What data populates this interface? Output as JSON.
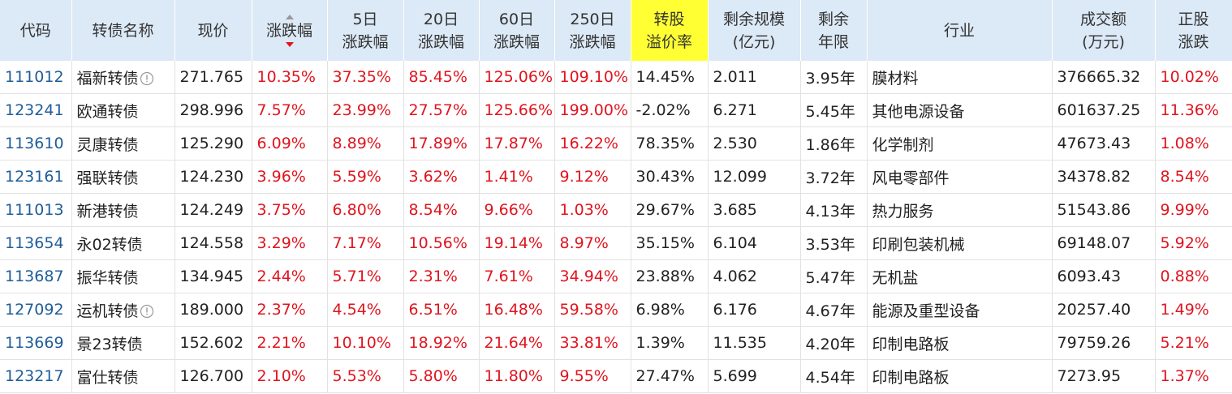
{
  "table": {
    "headers": [
      [
        "代码"
      ],
      [
        "转债名称"
      ],
      [
        "现价"
      ],
      [
        "涨跌幅"
      ],
      [
        "5日",
        "涨跌幅"
      ],
      [
        "20日",
        "涨跌幅"
      ],
      [
        "60日",
        "涨跌幅"
      ],
      [
        "250日",
        "涨跌幅"
      ],
      [
        "转股",
        "溢价率"
      ],
      [
        "剩余规模",
        "(亿元)"
      ],
      [
        "剩余",
        "年限"
      ],
      [
        "行业"
      ],
      [
        "成交额",
        "(万元)"
      ],
      [
        "正股",
        "涨跌"
      ]
    ],
    "rows": [
      {
        "info": true,
        "cells": [
          "111012",
          "福新转债",
          "271.765",
          "10.35%",
          "37.35%",
          "85.45%",
          "125.06%",
          "109.10%",
          "14.45%",
          "2.011",
          "3.95年",
          "膜材料",
          "376665.32",
          "10.02%"
        ]
      },
      {
        "info": false,
        "cells": [
          "123241",
          "欧通转债",
          "298.996",
          "7.57%",
          "23.99%",
          "27.57%",
          "125.66%",
          "199.00%",
          "-2.02%",
          "6.271",
          "5.45年",
          "其他电源设备",
          "601637.25",
          "11.36%"
        ]
      },
      {
        "info": false,
        "cells": [
          "113610",
          "灵康转债",
          "125.290",
          "6.09%",
          "8.89%",
          "17.89%",
          "17.87%",
          "16.22%",
          "78.35%",
          "2.530",
          "1.86年",
          "化学制剂",
          "47673.43",
          "1.08%"
        ]
      },
      {
        "info": false,
        "cells": [
          "123161",
          "强联转债",
          "124.230",
          "3.96%",
          "5.59%",
          "3.62%",
          "1.41%",
          "9.12%",
          "30.43%",
          "12.099",
          "3.72年",
          "风电零部件",
          "34378.82",
          "8.54%"
        ]
      },
      {
        "info": false,
        "cells": [
          "111013",
          "新港转债",
          "124.249",
          "3.75%",
          "6.80%",
          "8.54%",
          "9.66%",
          "1.03%",
          "29.67%",
          "3.685",
          "4.13年",
          "热力服务",
          "51543.86",
          "9.99%"
        ]
      },
      {
        "info": false,
        "cells": [
          "113654",
          "永02转债",
          "124.558",
          "3.29%",
          "7.17%",
          "10.56%",
          "19.14%",
          "8.97%",
          "35.15%",
          "6.104",
          "3.53年",
          "印刷包装机械",
          "69148.07",
          "5.92%"
        ]
      },
      {
        "info": false,
        "cells": [
          "113687",
          "振华转债",
          "134.945",
          "2.44%",
          "5.71%",
          "2.31%",
          "7.61%",
          "34.94%",
          "23.88%",
          "4.062",
          "5.47年",
          "无机盐",
          "6093.43",
          "0.88%"
        ]
      },
      {
        "info": true,
        "cells": [
          "127092",
          "运机转债",
          "189.000",
          "2.37%",
          "4.54%",
          "6.51%",
          "16.48%",
          "59.58%",
          "6.98%",
          "6.176",
          "4.67年",
          "能源及重型设备",
          "20257.40",
          "1.49%"
        ]
      },
      {
        "info": false,
        "cells": [
          "113669",
          "景23转债",
          "152.602",
          "2.21%",
          "10.10%",
          "18.92%",
          "21.64%",
          "33.81%",
          "1.39%",
          "11.535",
          "4.20年",
          "印制电路板",
          "79759.26",
          "5.21%"
        ]
      },
      {
        "info": false,
        "cells": [
          "123217",
          "富仕转债",
          "126.700",
          "2.10%",
          "5.53%",
          "5.80%",
          "11.80%",
          "9.55%",
          "27.47%",
          "5.699",
          "4.54年",
          "印制电路板",
          "7273.95",
          "1.37%"
        ]
      }
    ]
  }
}
